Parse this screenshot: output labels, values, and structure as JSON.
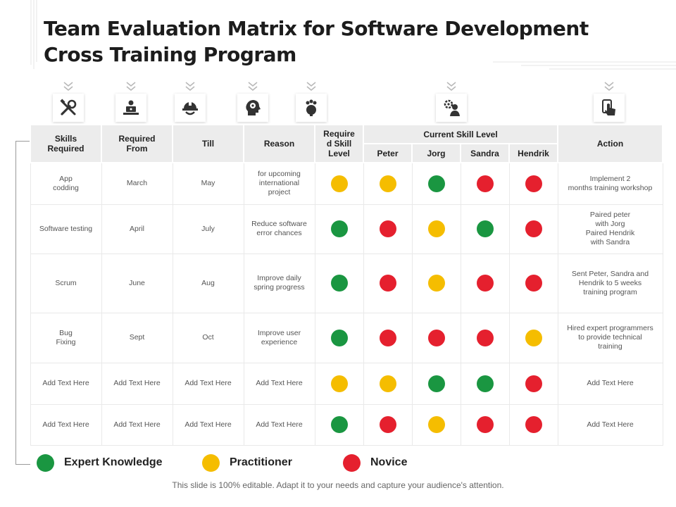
{
  "title": "Team Evaluation Matrix for Software Development Cross Training Program",
  "icons": [
    "tools-icon",
    "laptop-user-icon",
    "worker-helmet-icon",
    "head-gear-icon",
    "brain-gear-icon",
    "gear-person-icon",
    "touch-hand-icon"
  ],
  "colors": {
    "expert": "#1a9641",
    "practitioner": "#f5bd00",
    "novice": "#e5202e",
    "header_bg": "#ececec"
  },
  "table": {
    "headers": {
      "skills": "Skills\nRequired",
      "from": "Required\nFrom",
      "till": "Till",
      "reason": "Reason",
      "required_level": "Require\nd Skill\nLevel",
      "current": "Current Skill Level",
      "action": "Action",
      "people": [
        "Peter",
        "Jorg",
        "Sandra",
        "Hendrik"
      ]
    },
    "rows": [
      {
        "skill": "App\ncodding",
        "from": "March",
        "till": "May",
        "reason": "for upcoming\ninternational\nproject",
        "required": "practitioner",
        "levels": [
          "practitioner",
          "expert",
          "novice",
          "novice"
        ],
        "action": "Implement  2\nmonths training workshop"
      },
      {
        "skill": "Software testing",
        "from": "April",
        "till": "July",
        "reason": "Reduce software\nerror chances",
        "required": "expert",
        "levels": [
          "novice",
          "practitioner",
          "expert",
          "novice"
        ],
        "action": "Paired peter\nwith Jorg\nPaired Hendrik\nwith Sandra"
      },
      {
        "skill": "Scrum",
        "from": "June",
        "till": "Aug",
        "reason": "Improve daily\nspring progress",
        "required": "expert",
        "levels": [
          "novice",
          "practitioner",
          "novice",
          "novice"
        ],
        "action": "Sent Peter, Sandra and\nHendrik to 5 weeks\ntraining program"
      },
      {
        "skill": "Bug\nFixing",
        "from": "Sept",
        "till": "Oct",
        "reason": "Improve user\nexperience",
        "required": "expert",
        "levels": [
          "novice",
          "novice",
          "novice",
          "practitioner"
        ],
        "action": "Hired expert programmers\nto provide technical\ntraining"
      },
      {
        "skill": "Add Text Here",
        "from": "Add Text Here",
        "till": "Add Text Here",
        "reason": "Add Text Here",
        "required": "practitioner",
        "levels": [
          "practitioner",
          "expert",
          "expert",
          "novice"
        ],
        "action": "Add Text Here"
      },
      {
        "skill": "Add Text Here",
        "from": "Add Text Here",
        "till": "Add Text Here",
        "reason": "Add Text Here",
        "required": "expert",
        "levels": [
          "novice",
          "practitioner",
          "novice",
          "novice"
        ],
        "action": "Add Text Here"
      }
    ]
  },
  "legend": [
    {
      "level": "expert",
      "label": "Expert Knowledge"
    },
    {
      "level": "practitioner",
      "label": "Practitioner"
    },
    {
      "level": "novice",
      "label": "Novice"
    }
  ],
  "footer": "This slide is 100% editable. Adapt it to your needs and capture your audience's attention."
}
